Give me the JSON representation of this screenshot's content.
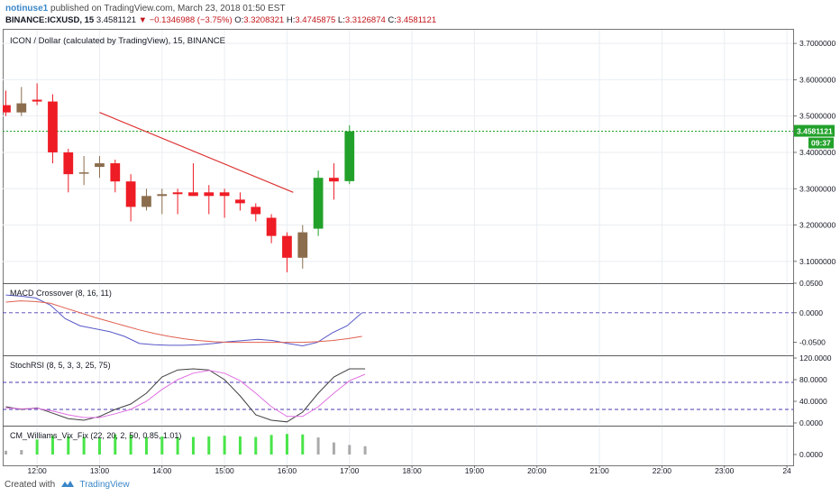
{
  "header": {
    "username": "notinuse1",
    "published_text": "published on TradingView.com, March 23, 2018 01:50 EST",
    "symbol": "BINANCE:ICXUSD, 15",
    "last": "3.4581121",
    "change": "▼ −0.1346988 (−3.75%)",
    "o_label": "O:",
    "o": "3.3208321",
    "h_label": "H:",
    "h": "3.4745875",
    "l_label": "L:",
    "l": "3.3126874",
    "c_label": "C:",
    "c": "3.4581121"
  },
  "footer": {
    "created_with": "Created with",
    "brand": "TradingView"
  },
  "colors": {
    "up": "#22a12a",
    "down": "#ee1c25",
    "down_faded": "#8b6d4d",
    "grid": "#e9eef2",
    "price_line": "#22a12a",
    "macd": "#5858c8",
    "signal": "#e06050",
    "stoch_k": "#404040",
    "stoch_d": "#e070e0",
    "trend": "#dd3333",
    "vix_on": "#49e549",
    "vix_off": "#aaaaaa"
  },
  "chart_data": [
    {
      "type": "candlestick",
      "title": "ICON / Dollar (calculated by TradingView), 15, BINANCE",
      "ylim": [
        3.04,
        3.74
      ],
      "y_ticks": [
        "3.7000000",
        "3.6000000",
        "3.5000000",
        "3.4000000",
        "3.3000000",
        "3.2000000",
        "3.1000000"
      ],
      "x_ticks": [
        "12:00",
        "13:00",
        "14:00",
        "15:00",
        "16:00",
        "17:00",
        "18:00",
        "19:00",
        "20:00",
        "21:00",
        "22:00",
        "23:00",
        "24"
      ],
      "x_tick_values": [
        12,
        13,
        14,
        15,
        16,
        17,
        18,
        19,
        20,
        21,
        22,
        23,
        24
      ],
      "xlim": [
        11.45,
        24.1
      ],
      "last_price_label": "3.4581121",
      "countdown_label": "09:37",
      "last_price": 3.4581121,
      "candles": [
        {
          "t": 11.5,
          "o": 3.53,
          "h": 3.57,
          "l": 3.5,
          "c": 3.51
        },
        {
          "t": 11.75,
          "o": 3.51,
          "h": 3.58,
          "l": 3.5,
          "c": 3.535
        },
        {
          "t": 12.0,
          "o": 3.545,
          "h": 3.59,
          "l": 3.53,
          "c": 3.54
        },
        {
          "t": 12.25,
          "o": 3.54,
          "h": 3.56,
          "l": 3.37,
          "c": 3.4
        },
        {
          "t": 12.5,
          "o": 3.4,
          "h": 3.41,
          "l": 3.29,
          "c": 3.34
        },
        {
          "t": 12.75,
          "o": 3.345,
          "h": 3.39,
          "l": 3.31,
          "c": 3.345
        },
        {
          "t": 13.0,
          "o": 3.36,
          "h": 3.39,
          "l": 3.33,
          "c": 3.37
        },
        {
          "t": 13.25,
          "o": 3.37,
          "h": 3.38,
          "l": 3.29,
          "c": 3.32
        },
        {
          "t": 13.5,
          "o": 3.32,
          "h": 3.34,
          "l": 3.21,
          "c": 3.25
        },
        {
          "t": 13.75,
          "o": 3.25,
          "h": 3.3,
          "l": 3.24,
          "c": 3.28
        },
        {
          "t": 14.0,
          "o": 3.28,
          "h": 3.3,
          "l": 3.23,
          "c": 3.285
        },
        {
          "t": 14.25,
          "o": 3.29,
          "h": 3.3,
          "l": 3.23,
          "c": 3.285
        },
        {
          "t": 14.5,
          "o": 3.29,
          "h": 3.37,
          "l": 3.28,
          "c": 3.28
        },
        {
          "t": 14.75,
          "o": 3.29,
          "h": 3.31,
          "l": 3.23,
          "c": 3.28
        },
        {
          "t": 15.0,
          "o": 3.29,
          "h": 3.3,
          "l": 3.22,
          "c": 3.28
        },
        {
          "t": 15.25,
          "o": 3.27,
          "h": 3.29,
          "l": 3.24,
          "c": 3.26
        },
        {
          "t": 15.5,
          "o": 3.25,
          "h": 3.26,
          "l": 3.21,
          "c": 3.23
        },
        {
          "t": 15.75,
          "o": 3.22,
          "h": 3.23,
          "l": 3.15,
          "c": 3.17
        },
        {
          "t": 16.0,
          "o": 3.17,
          "h": 3.18,
          "l": 3.07,
          "c": 3.11
        },
        {
          "t": 16.25,
          "o": 3.11,
          "h": 3.2,
          "l": 3.08,
          "c": 3.18
        },
        {
          "t": 16.5,
          "o": 3.19,
          "h": 3.35,
          "l": 3.17,
          "c": 3.33
        },
        {
          "t": 16.75,
          "o": 3.33,
          "h": 3.37,
          "l": 3.27,
          "c": 3.32
        },
        {
          "t": 17.0,
          "o": 3.3208321,
          "h": 3.4745875,
          "l": 3.3126874,
          "c": 3.4581121
        }
      ],
      "trendline": [
        {
          "t": 13.0,
          "v": 3.51
        },
        {
          "t": 16.1,
          "v": 3.29
        }
      ]
    },
    {
      "type": "line",
      "title": "MACD Crossover (8, 16, 11)",
      "ylim": [
        -0.072,
        0.05
      ],
      "y_ticks": [
        "0.0500",
        "0.0000",
        "-0.0500"
      ],
      "y_tick_values": [
        0.05,
        0.0,
        -0.05
      ],
      "zero_line": 0.0,
      "series": [
        {
          "key": "macd",
          "values": [
            0.03,
            0.028,
            0.025,
            0.013,
            -0.01,
            -0.022,
            -0.027,
            -0.032,
            -0.04,
            -0.052,
            -0.054,
            -0.055,
            -0.055,
            -0.054,
            -0.052,
            -0.049,
            -0.047,
            -0.045,
            -0.047,
            -0.052,
            -0.056,
            -0.05,
            -0.034,
            -0.022,
            0.0
          ]
        },
        {
          "key": "signal",
          "values": [
            0.018,
            0.02,
            0.019,
            0.016,
            0.008,
            0.0,
            -0.008,
            -0.015,
            -0.022,
            -0.029,
            -0.035,
            -0.04,
            -0.044,
            -0.047,
            -0.049,
            -0.05,
            -0.05,
            -0.05,
            -0.05,
            -0.05,
            -0.05,
            -0.049,
            -0.047,
            -0.044,
            -0.04
          ]
        }
      ],
      "t_start": 11.5,
      "t_step": 0.2375
    },
    {
      "type": "line",
      "title": "StochRSI (8, 5, 3, 3, 25, 75)",
      "ylim": [
        -5,
        125
      ],
      "y_ticks": [
        "120.0000",
        "80.0000",
        "40.0000",
        "0.0000"
      ],
      "y_tick_values": [
        120,
        80,
        40,
        0
      ],
      "bands": [
        75,
        25
      ],
      "series": [
        {
          "key": "k",
          "values": [
            30,
            25,
            28,
            18,
            8,
            5,
            12,
            25,
            35,
            55,
            85,
            98,
            100,
            98,
            80,
            50,
            15,
            5,
            2,
            20,
            55,
            85,
            100,
            100
          ]
        },
        {
          "key": "d",
          "values": [
            28,
            26,
            27,
            22,
            15,
            10,
            10,
            17,
            25,
            40,
            62,
            80,
            92,
            97,
            92,
            78,
            55,
            30,
            12,
            12,
            30,
            55,
            78,
            90
          ]
        }
      ],
      "t_start": 11.5,
      "t_step": 0.25
    },
    {
      "type": "bar",
      "title": "CM_Williams_Vix_Fix (22, 20, 2, 50, 0.85, 1.01)",
      "ylim": [
        0,
        1.15
      ],
      "y_ticks": [
        "0.0000"
      ],
      "y_tick_values": [
        0
      ],
      "t_start": 11.5,
      "t_step": 0.25,
      "values": [
        0.15,
        0.18,
        0.6,
        0.75,
        0.72,
        0.7,
        0.65,
        0.8,
        0.78,
        0.7,
        0.72,
        0.7,
        0.7,
        0.72,
        0.75,
        0.72,
        0.7,
        0.78,
        0.82,
        0.8,
        0.68,
        0.48,
        0.38,
        0.33
      ],
      "highlight": [
        false,
        false,
        true,
        true,
        true,
        true,
        true,
        true,
        true,
        true,
        true,
        true,
        true,
        true,
        true,
        true,
        true,
        true,
        true,
        true,
        false,
        false,
        false,
        false
      ]
    }
  ]
}
